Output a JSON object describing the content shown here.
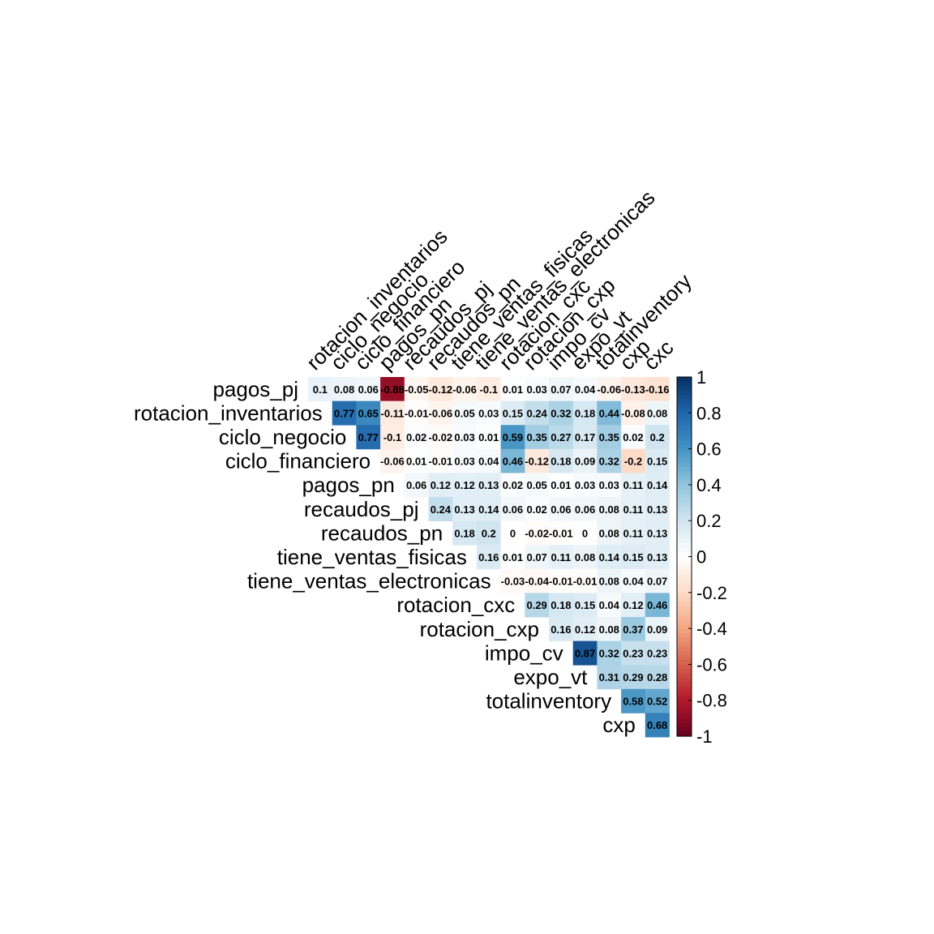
{
  "chart_data": {
    "type": "heatmap",
    "variables": [
      "pagos_pj",
      "rotacion_inventarios",
      "ciclo_negocio",
      "ciclo_financiero",
      "pagos_pn",
      "recaudos_pj",
      "recaudos_pn",
      "tiene_ventas_fisicas",
      "tiene_ventas_electronicas",
      "rotacion_cxc",
      "rotacion_cxp",
      "impo_cv",
      "expo_vt",
      "totalinventory",
      "cxp",
      "cxc"
    ],
    "row_labels": [
      "pagos_pj",
      "rotacion_inventarios",
      "ciclo_negocio",
      "ciclo_financiero",
      "pagos_pn",
      "recaudos_pj",
      "recaudos_pn",
      "tiene_ventas_fisicas",
      "tiene_ventas_electronicas",
      "rotacion_cxc",
      "rotacion_cxp",
      "impo_cv",
      "expo_vt",
      "totalinventory",
      "cxp"
    ],
    "column_labels": [
      "rotacion_inventarios",
      "ciclo_negocio",
      "ciclo_financiero",
      "pagos_pn",
      "recaudos_pj",
      "recaudos_pn",
      "tiene_ventas_fisicas",
      "tiene_ventas_electronicas",
      "rotacion_cxc",
      "rotacion_cxp",
      "impo_cv",
      "expo_vt",
      "totalinventory",
      "cxp",
      "cxc"
    ],
    "upper_triangle_values": [
      [
        0.1,
        0.08,
        0.06,
        -0.88,
        -0.05,
        -0.12,
        -0.06,
        -0.1,
        0.01,
        0.03,
        0.07,
        0.04,
        -0.06,
        -0.13,
        -0.16
      ],
      [
        0.77,
        0.65,
        -0.11,
        -0.01,
        -0.06,
        0.05,
        0.03,
        0.15,
        0.24,
        0.32,
        0.18,
        0.44,
        -0.08,
        0.08
      ],
      [
        0.77,
        -0.1,
        0.02,
        -0.02,
        0.03,
        0.01,
        0.59,
        0.35,
        0.27,
        0.17,
        0.35,
        0.02,
        0.2
      ],
      [
        -0.06,
        0.01,
        -0.01,
        0.03,
        0.04,
        0.46,
        -0.12,
        0.18,
        0.09,
        0.32,
        -0.2,
        0.15
      ],
      [
        0.06,
        0.12,
        0.12,
        0.13,
        0.02,
        0.05,
        0.01,
        0.03,
        0.03,
        0.11,
        0.14
      ],
      [
        0.24,
        0.13,
        0.14,
        0.06,
        0.02,
        0.06,
        0.06,
        0.08,
        0.11,
        0.13
      ],
      [
        0.18,
        0.2,
        0,
        -0.02,
        -0.01,
        0,
        0.08,
        0.11,
        0.13
      ],
      [
        0.16,
        0.01,
        0.07,
        0.11,
        0.08,
        0.14,
        0.15,
        0.13
      ],
      [
        -0.03,
        -0.04,
        -0.01,
        -0.01,
        0.08,
        0.04,
        0.07
      ],
      [
        0.29,
        0.18,
        0.15,
        0.04,
        0.12,
        0.46
      ],
      [
        0.16,
        0.12,
        0.08,
        0.37,
        0.09
      ],
      [
        0.87,
        0.32,
        0.23,
        0.23
      ],
      [
        0.31,
        0.29,
        0.28
      ],
      [
        0.58,
        0.52
      ],
      [
        0.68
      ]
    ],
    "colorbar": {
      "range": [
        -1,
        1
      ],
      "tick_labels": [
        "1",
        "0.8",
        "0.6",
        "0.4",
        "0.2",
        "0",
        "-0.2",
        "-0.4",
        "-0.6",
        "-0.8",
        "-1"
      ],
      "placement": "right"
    },
    "colors": {
      "negative": "#67001f",
      "neutral": "#ffffff",
      "positive": "#053061"
    }
  }
}
